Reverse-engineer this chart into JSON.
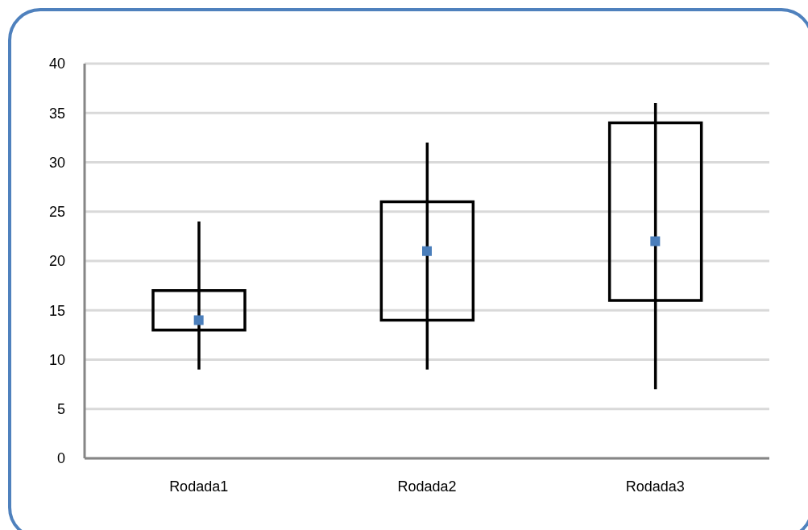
{
  "chart_data": {
    "type": "box",
    "categories": [
      "Rodada1",
      "Rodada2",
      "Rodada3"
    ],
    "boxes": [
      {
        "low": 9,
        "q1": 13,
        "q3": 17,
        "high": 24
      },
      {
        "low": 9,
        "q1": 14,
        "q3": 26,
        "high": 32
      },
      {
        "low": 7,
        "q1": 16,
        "q3": 34,
        "high": 36
      }
    ],
    "color": "#000000",
    "series": [
      {
        "type": "scatter",
        "x": [
          "Rodada1",
          "Rodada2",
          "Rodada3"
        ],
        "values": [
          14,
          21,
          22
        ],
        "color": "#4a7ebb",
        "marker": "square"
      }
    ],
    "ylim": [
      0,
      40
    ],
    "yticks": [
      0,
      5,
      10,
      15,
      20,
      25,
      30,
      35,
      40
    ],
    "grid": "y"
  }
}
